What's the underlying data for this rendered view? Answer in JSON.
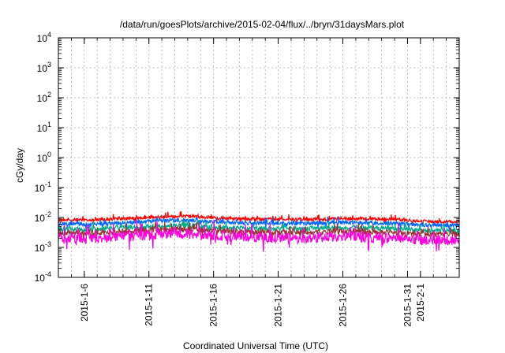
{
  "chart_data": {
    "type": "line",
    "title": "/data/run/goesPlots/archive/2015-02-04/flux/../bryn/31daysMars.plot",
    "xlabel": "Coordinated Universal Time (UTC)",
    "ylabel": "cGy/day",
    "yscale": "log",
    "ylim": [
      0.0001,
      10000
    ],
    "y_ticks": [
      {
        "value": 0.0001,
        "base": "10",
        "exp": "-4"
      },
      {
        "value": 0.001,
        "base": "10",
        "exp": "-3"
      },
      {
        "value": 0.01,
        "base": "10",
        "exp": "-2"
      },
      {
        "value": 0.1,
        "base": "10",
        "exp": "-1"
      },
      {
        "value": 1,
        "base": "10",
        "exp": "0"
      },
      {
        "value": 10,
        "base": "10",
        "exp": "1"
      },
      {
        "value": 100,
        "base": "10",
        "exp": "2"
      },
      {
        "value": 1000,
        "base": "10",
        "exp": "3"
      },
      {
        "value": 10000,
        "base": "10",
        "exp": "4"
      }
    ],
    "xlim": [
      "2015-01-04",
      "2015-02-04"
    ],
    "x_ticks": [
      {
        "date": "2015-01-06",
        "label": "2015-1-6"
      },
      {
        "date": "2015-01-11",
        "label": "2015-1-11"
      },
      {
        "date": "2015-01-16",
        "label": "2015-1-16"
      },
      {
        "date": "2015-01-21",
        "label": "2015-1-21"
      },
      {
        "date": "2015-01-26",
        "label": "2015-1-26"
      },
      {
        "date": "2015-01-31",
        "label": "2015-1-31"
      },
      {
        "date": "2015-02-01",
        "label": "2015-2-1"
      }
    ],
    "grid": true,
    "legend": "none",
    "series": [
      {
        "color": "#ff0000",
        "x": [
          "2015-01-04",
          "2015-01-06",
          "2015-01-08",
          "2015-01-10",
          "2015-01-12",
          "2015-01-14",
          "2015-01-16",
          "2015-01-18",
          "2015-01-20",
          "2015-01-22",
          "2015-01-24",
          "2015-01-26",
          "2015-01-28",
          "2015-01-30",
          "2015-02-01",
          "2015-02-03",
          "2015-02-04"
        ],
        "y": [
          0.0085,
          0.0082,
          0.0088,
          0.0095,
          0.0105,
          0.011,
          0.0098,
          0.009,
          0.0088,
          0.0086,
          0.0087,
          0.0092,
          0.009,
          0.0086,
          0.0075,
          0.0072,
          0.0074
        ]
      },
      {
        "color": "#0066ff",
        "x": [
          "2015-01-04",
          "2015-01-06",
          "2015-01-08",
          "2015-01-10",
          "2015-01-12",
          "2015-01-14",
          "2015-01-16",
          "2015-01-18",
          "2015-01-20",
          "2015-01-22",
          "2015-01-24",
          "2015-01-26",
          "2015-01-28",
          "2015-01-30",
          "2015-02-01",
          "2015-02-03",
          "2015-02-04"
        ],
        "y": [
          0.0062,
          0.006,
          0.0064,
          0.007,
          0.0078,
          0.008,
          0.0072,
          0.0066,
          0.0065,
          0.0063,
          0.0064,
          0.0068,
          0.0066,
          0.0063,
          0.0056,
          0.0054,
          0.0055
        ]
      },
      {
        "color": "#00aa88",
        "x": [
          "2015-01-04",
          "2015-01-06",
          "2015-01-08",
          "2015-01-10",
          "2015-01-12",
          "2015-01-14",
          "2015-01-16",
          "2015-01-18",
          "2015-01-20",
          "2015-01-22",
          "2015-01-24",
          "2015-01-26",
          "2015-01-28",
          "2015-01-30",
          "2015-02-01",
          "2015-02-03",
          "2015-02-04"
        ],
        "y": [
          0.0042,
          0.004,
          0.0043,
          0.0047,
          0.0052,
          0.0054,
          0.0048,
          0.0044,
          0.0043,
          0.0042,
          0.0043,
          0.0045,
          0.0044,
          0.0042,
          0.0038,
          0.0036,
          0.0037
        ]
      },
      {
        "color": "#993333",
        "x": [
          "2015-01-04",
          "2015-01-06",
          "2015-01-08",
          "2015-01-10",
          "2015-01-12",
          "2015-01-14",
          "2015-01-16",
          "2015-01-18",
          "2015-01-20",
          "2015-01-22",
          "2015-01-24",
          "2015-01-26",
          "2015-01-28",
          "2015-01-30",
          "2015-02-01",
          "2015-02-03",
          "2015-02-04"
        ],
        "y": [
          0.0031,
          0.003,
          0.0032,
          0.0035,
          0.0039,
          0.004,
          0.0036,
          0.0033,
          0.0032,
          0.0031,
          0.0032,
          0.0034,
          0.0033,
          0.0031,
          0.0028,
          0.0027,
          0.0028
        ]
      },
      {
        "color": "#ff00dd",
        "x": [
          "2015-01-04",
          "2015-01-06",
          "2015-01-08",
          "2015-01-10",
          "2015-01-12",
          "2015-01-14",
          "2015-01-16",
          "2015-01-18",
          "2015-01-20",
          "2015-01-22",
          "2015-01-24",
          "2015-01-26",
          "2015-01-28",
          "2015-01-30",
          "2015-02-01",
          "2015-02-03",
          "2015-02-04"
        ],
        "y": [
          0.0022,
          0.002,
          0.0021,
          0.0025,
          0.0028,
          0.0029,
          0.0025,
          0.0022,
          0.0021,
          0.002,
          0.0021,
          0.0023,
          0.0022,
          0.002,
          0.0018,
          0.0017,
          0.0018
        ]
      }
    ]
  }
}
